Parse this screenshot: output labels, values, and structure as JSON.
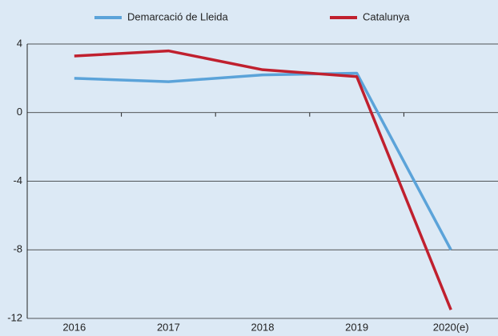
{
  "chart_data": {
    "type": "line",
    "categories": [
      "2016",
      "2017",
      "2018",
      "2019",
      "2020(e)"
    ],
    "series": [
      {
        "name": "Demarcació de Lleida",
        "color": "#5ba3d9",
        "values": [
          2.0,
          1.8,
          2.2,
          2.3,
          -8.0
        ]
      },
      {
        "name": "Catalunya",
        "color": "#c0202e",
        "values": [
          3.3,
          3.6,
          2.5,
          2.1,
          -11.5
        ]
      }
    ],
    "ylim": [
      -12,
      4
    ],
    "yticks": [
      -12,
      -8,
      -4,
      0,
      4
    ],
    "grid": true
  }
}
